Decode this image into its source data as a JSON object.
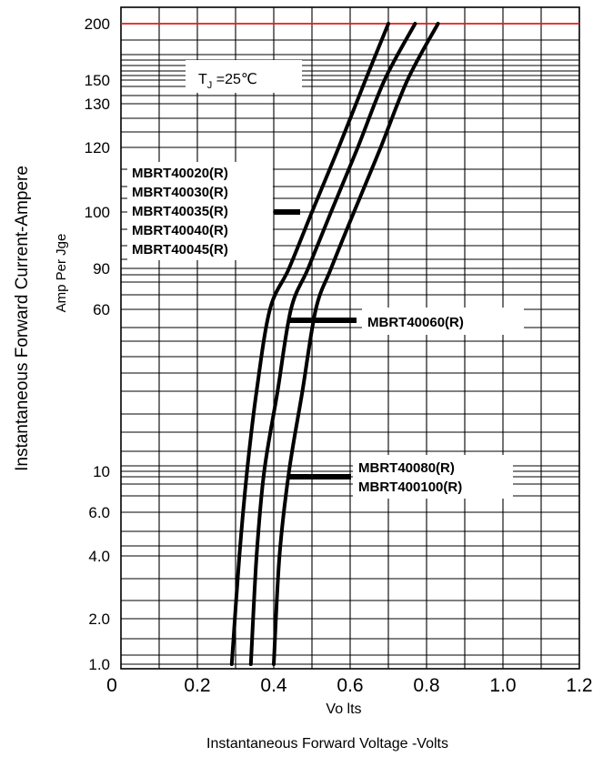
{
  "chart_data": {
    "type": "line",
    "title": "",
    "xlabel": "Instantaneous  Forward Voltage -Volts",
    "xlabel_units": "Vo lts",
    "ylabel": "Instantaneous  Forward  Current-Ampere",
    "ylabel_sub": "Amp    Per Jge",
    "annotation": "T_J =25°C",
    "annotation_main": "T",
    "annotation_sub": "J",
    "annotation_rest": " =25℃",
    "xlim": [
      0,
      1.2
    ],
    "x_ticks": [
      "0",
      "0.2",
      "0.4",
      "0.6",
      "0.8",
      "1.0",
      "1.2"
    ],
    "y_tick_labels": [
      "200",
      "150",
      "130",
      "120",
      "100",
      "90",
      "60",
      "10",
      "6.0",
      "4.0",
      "2.0",
      "1.0"
    ],
    "grid": true,
    "reference_line": {
      "y": "200",
      "color": "#e21b1b"
    },
    "series": [
      {
        "name": "MBRT40020(R) / MBRT40030(R) / MBRT40035(R) / MBRT40040(R) / MBRT40045(R)",
        "x": [
          0.29,
          0.31,
          0.33,
          0.355,
          0.39,
          0.44,
          0.5,
          0.57,
          0.64,
          0.7
        ],
        "y": [
          "1.0",
          "4.0",
          "10",
          "40",
          "60",
          "90",
          "100",
          "120",
          "150",
          "200"
        ]
      },
      {
        "name": "MBRT40060(R)",
        "x": [
          0.34,
          0.355,
          0.375,
          0.41,
          0.445,
          0.49,
          0.55,
          0.62,
          0.69,
          0.77
        ],
        "y": [
          "1.0",
          "4.0",
          "10",
          "40",
          "60",
          "90",
          "100",
          "120",
          "150",
          "200"
        ]
      },
      {
        "name": "MBRT40080(R) / MBRT400100(R)",
        "x": [
          0.4,
          0.415,
          0.44,
          0.475,
          0.51,
          0.55,
          0.61,
          0.68,
          0.75,
          0.83
        ],
        "y": [
          "1.0",
          "4.0",
          "10",
          "40",
          "60",
          "90",
          "100",
          "120",
          "150",
          "200"
        ]
      }
    ],
    "callouts": {
      "group1": [
        "MBRT40020(R)",
        "MBRT40030(R)",
        "MBRT40035(R)",
        "MBRT40040(R)",
        "MBRT40045(R)"
      ],
      "group2": [
        "MBRT40060(R)"
      ],
      "group3": [
        "MBRT40080(R)",
        "MBRT400100(R)"
      ]
    },
    "colors": {
      "grid": "#000000",
      "reference": "#e21b1b",
      "curves": "#000000"
    }
  }
}
